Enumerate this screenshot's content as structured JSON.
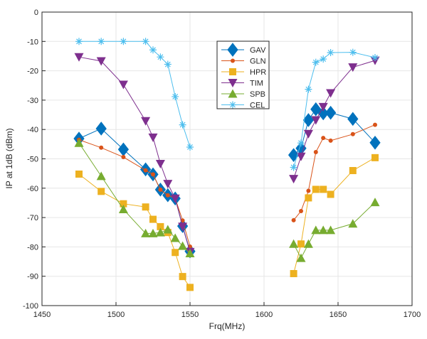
{
  "chart_data": {
    "type": "line",
    "title": "",
    "xlabel": "Frq(MHz)",
    "ylabel": "IP at 1dB (dBm)",
    "xlim": [
      1450,
      1700
    ],
    "ylim": [
      -100,
      0
    ],
    "xticks": [
      "1450",
      "1500",
      "1550",
      "1600",
      "1650",
      "1700"
    ],
    "yticks": [
      "0",
      "-10",
      "-20",
      "-30",
      "-40",
      "-50",
      "-60",
      "-70",
      "-80",
      "-90",
      "-100"
    ],
    "grid": true,
    "legend_position": "top-center",
    "x": [
      1475,
      1490,
      1505,
      1520,
      1525,
      1530,
      1535,
      1540,
      1545,
      1550,
      1620,
      1625,
      1630,
      1635,
      1640,
      1645,
      1660,
      1675
    ],
    "series": [
      {
        "name": "GAV",
        "color": "#0072BD",
        "marker": "diamond",
        "values": [
          -43.1,
          -39.7,
          -46.8,
          -53.6,
          -55.3,
          -60.5,
          -62.4,
          -63.5,
          -72.9,
          -81.5,
          -48.7,
          -46.4,
          -36.8,
          -33.1,
          -34.5,
          -34.3,
          -36.4,
          -44.5
        ]
      },
      {
        "name": "GLN",
        "color": "#D95319",
        "marker": "dot",
        "values": [
          -43.5,
          -46.2,
          -49.4,
          -53.9,
          -55.3,
          -60.5,
          -62.4,
          -63.5,
          -71.0,
          -79.9,
          -70.9,
          -67.8,
          -60.9,
          -47.7,
          -42.9,
          -43.8,
          -41.6,
          -38.4
        ]
      },
      {
        "name": "HPR",
        "color": "#EDB120",
        "marker": "square",
        "values": [
          -55.2,
          -61.1,
          -65.3,
          -66.4,
          -70.6,
          -73.1,
          -75.1,
          -81.9,
          -90.1,
          -93.8,
          -89.1,
          -79.0,
          -63.3,
          -60.4,
          -60.4,
          -62.1,
          -54.0,
          -49.6
        ]
      },
      {
        "name": "TIM",
        "color": "#7E2F8E",
        "marker": "triangle-down",
        "values": [
          -15.3,
          -16.7,
          -24.7,
          -37.1,
          -42.7,
          -51.7,
          -58.5,
          -63.5,
          -73.1,
          -81.7,
          -56.8,
          -49.2,
          -41.5,
          -36.8,
          -32.3,
          -27.6,
          -18.8,
          -16.5
        ]
      },
      {
        "name": "SPB",
        "color": "#77AC30",
        "marker": "triangle-up",
        "values": [
          -44.6,
          -55.9,
          -67.2,
          -75.4,
          -75.4,
          -75.1,
          -74.1,
          -77.0,
          -79.7,
          -82.2,
          -79.0,
          -83.8,
          -79.0,
          -74.3,
          -74.3,
          -74.3,
          -72.1,
          -64.8
        ]
      },
      {
        "name": "CEL",
        "color": "#4DBEEE",
        "marker": "asterisk",
        "values": [
          -10,
          -10,
          -10,
          -10,
          -12.9,
          -15.3,
          -17.8,
          -28.8,
          -38.4,
          -46.0,
          -52.9,
          -44.6,
          -26.3,
          -17.1,
          -16.0,
          -13.8,
          -13.7,
          -15.5
        ]
      }
    ]
  }
}
